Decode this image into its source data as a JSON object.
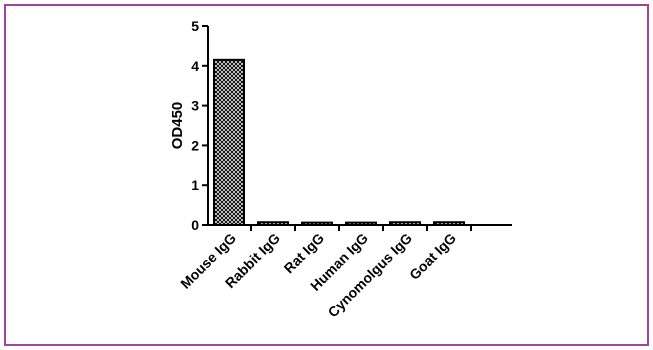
{
  "frame_color": "#a3449a",
  "chart_data": {
    "type": "bar",
    "title": "",
    "xlabel": "",
    "ylabel": "OD450",
    "categories": [
      "Mouse IgG",
      "Rabbit IgG",
      "Rat IgG",
      "Human IgG",
      "Cynomolgus IgG",
      "Goat IgG"
    ],
    "values": [
      4.15,
      0.07,
      0.06,
      0.06,
      0.07,
      0.07
    ],
    "ylim": [
      0,
      5
    ],
    "yticks": [
      "0",
      "1",
      "2",
      "3",
      "4",
      "5"
    ],
    "grid": false,
    "legend": "none",
    "bar_fill": "crosshatch"
  }
}
